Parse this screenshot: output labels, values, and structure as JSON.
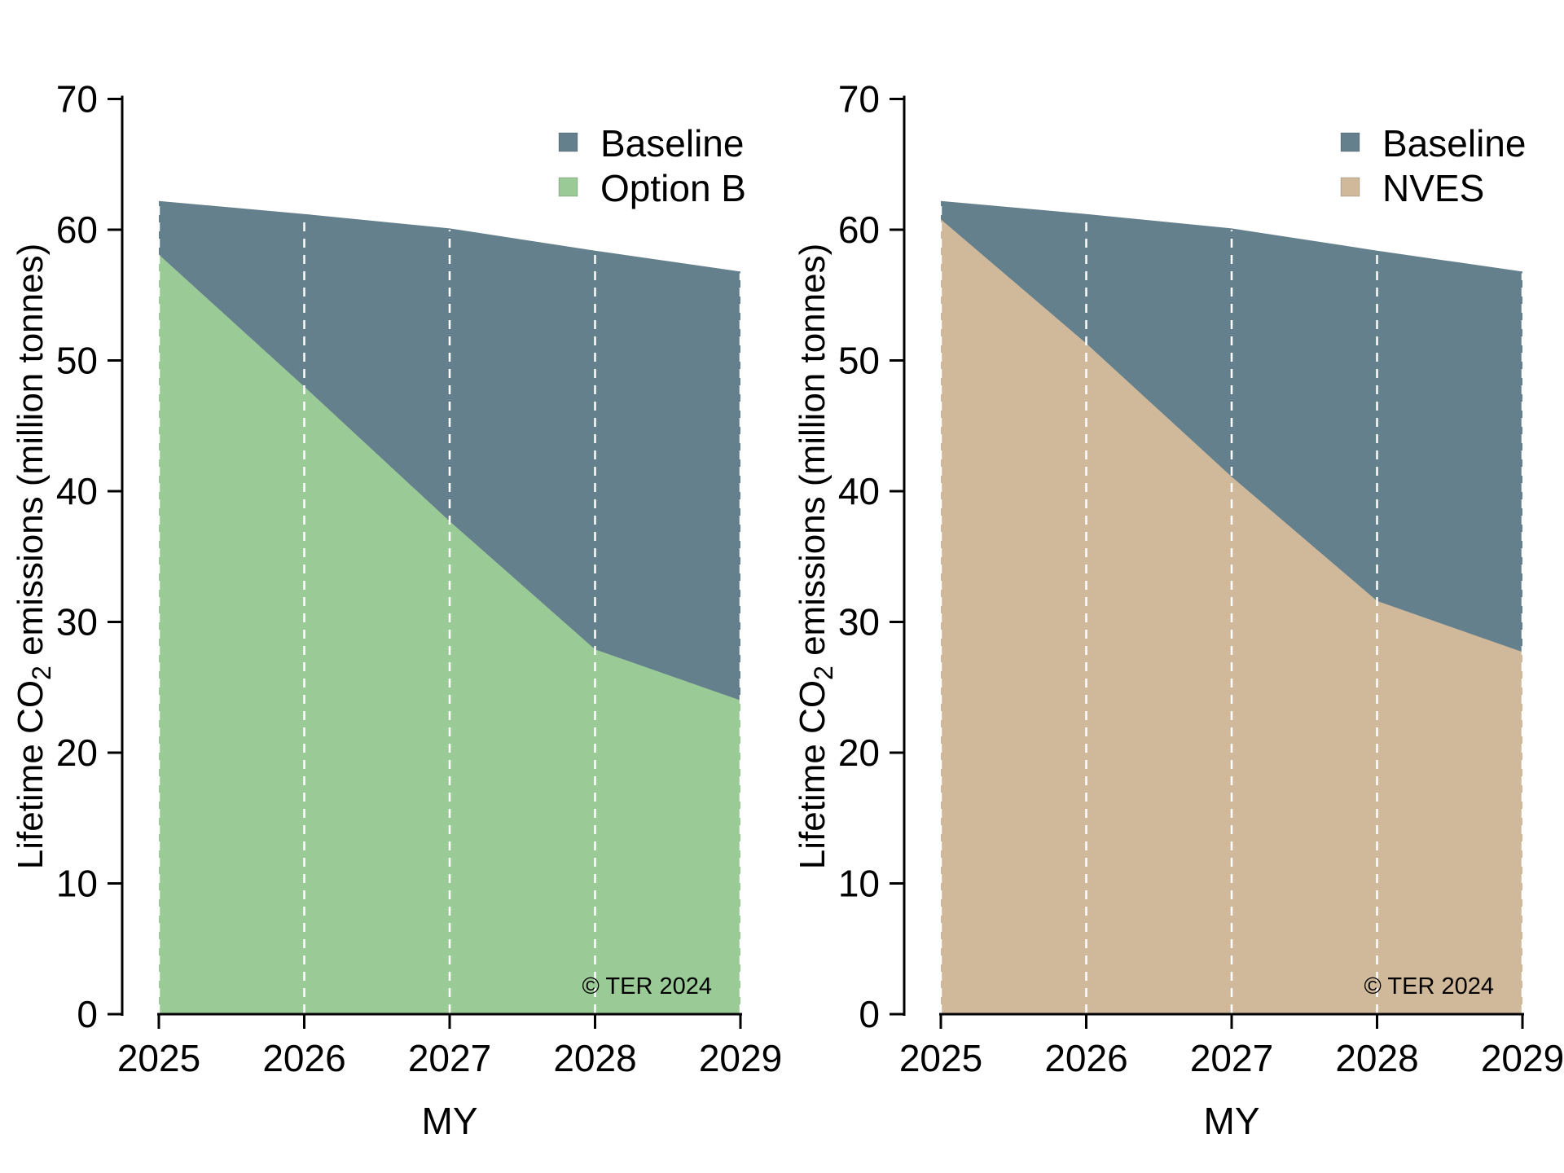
{
  "figure": {
    "background": "#ffffff",
    "watermark_text": "© TER 2024",
    "watermark_color": "#8395B2"
  },
  "colors": {
    "baseline": "#65808D",
    "option_b": "#9ACB96",
    "nves": "#D0B99B",
    "gridline": "#FFFFFF",
    "axis": "#000000"
  },
  "chart_data": [
    {
      "type": "area",
      "x": [
        2025,
        2026,
        2027,
        2028,
        2029
      ],
      "x_tick_labels": [
        "2025",
        "2026",
        "2027",
        "2028",
        "2029"
      ],
      "xlabel": "MY",
      "ylabel": {
        "prefix": "Lifetime CO",
        "sub": "2",
        "suffix": " emissions (million tonnes)"
      },
      "ylim": [
        0,
        70
      ],
      "yticks": [
        0,
        10,
        20,
        30,
        40,
        50,
        60,
        70
      ],
      "y_tick_labels": [
        "0",
        "10",
        "20",
        "30",
        "40",
        "50",
        "60",
        "70"
      ],
      "grid": "vertical-dashed-white",
      "legend_position": "top-right",
      "series": [
        {
          "name": "Baseline",
          "color": "#65808D",
          "values": [
            62.2,
            61.2,
            60.1,
            58.4,
            56.8
          ]
        },
        {
          "name": "Option B",
          "color": "#9ACB96",
          "values": [
            58.1,
            48.0,
            37.7,
            27.9,
            24.0
          ]
        }
      ],
      "watermark": "© TER 2024"
    },
    {
      "type": "area",
      "x": [
        2025,
        2026,
        2027,
        2028,
        2029
      ],
      "x_tick_labels": [
        "2025",
        "2026",
        "2027",
        "2028",
        "2029"
      ],
      "xlabel": "MY",
      "ylabel": {
        "prefix": "Lifetime CO",
        "sub": "2",
        "suffix": " emissions (million tonnes)"
      },
      "ylim": [
        0,
        70
      ],
      "yticks": [
        0,
        10,
        20,
        30,
        40,
        50,
        60,
        70
      ],
      "y_tick_labels": [
        "0",
        "10",
        "20",
        "30",
        "40",
        "50",
        "60",
        "70"
      ],
      "grid": "vertical-dashed-white",
      "legend_position": "top-right",
      "series": [
        {
          "name": "Baseline",
          "color": "#65808D",
          "values": [
            62.2,
            61.2,
            60.1,
            58.4,
            56.8
          ]
        },
        {
          "name": "NVES",
          "color": "#D0B99B",
          "values": [
            60.8,
            51.3,
            41.1,
            31.6,
            27.7
          ]
        }
      ],
      "watermark": "© TER 2024"
    }
  ]
}
